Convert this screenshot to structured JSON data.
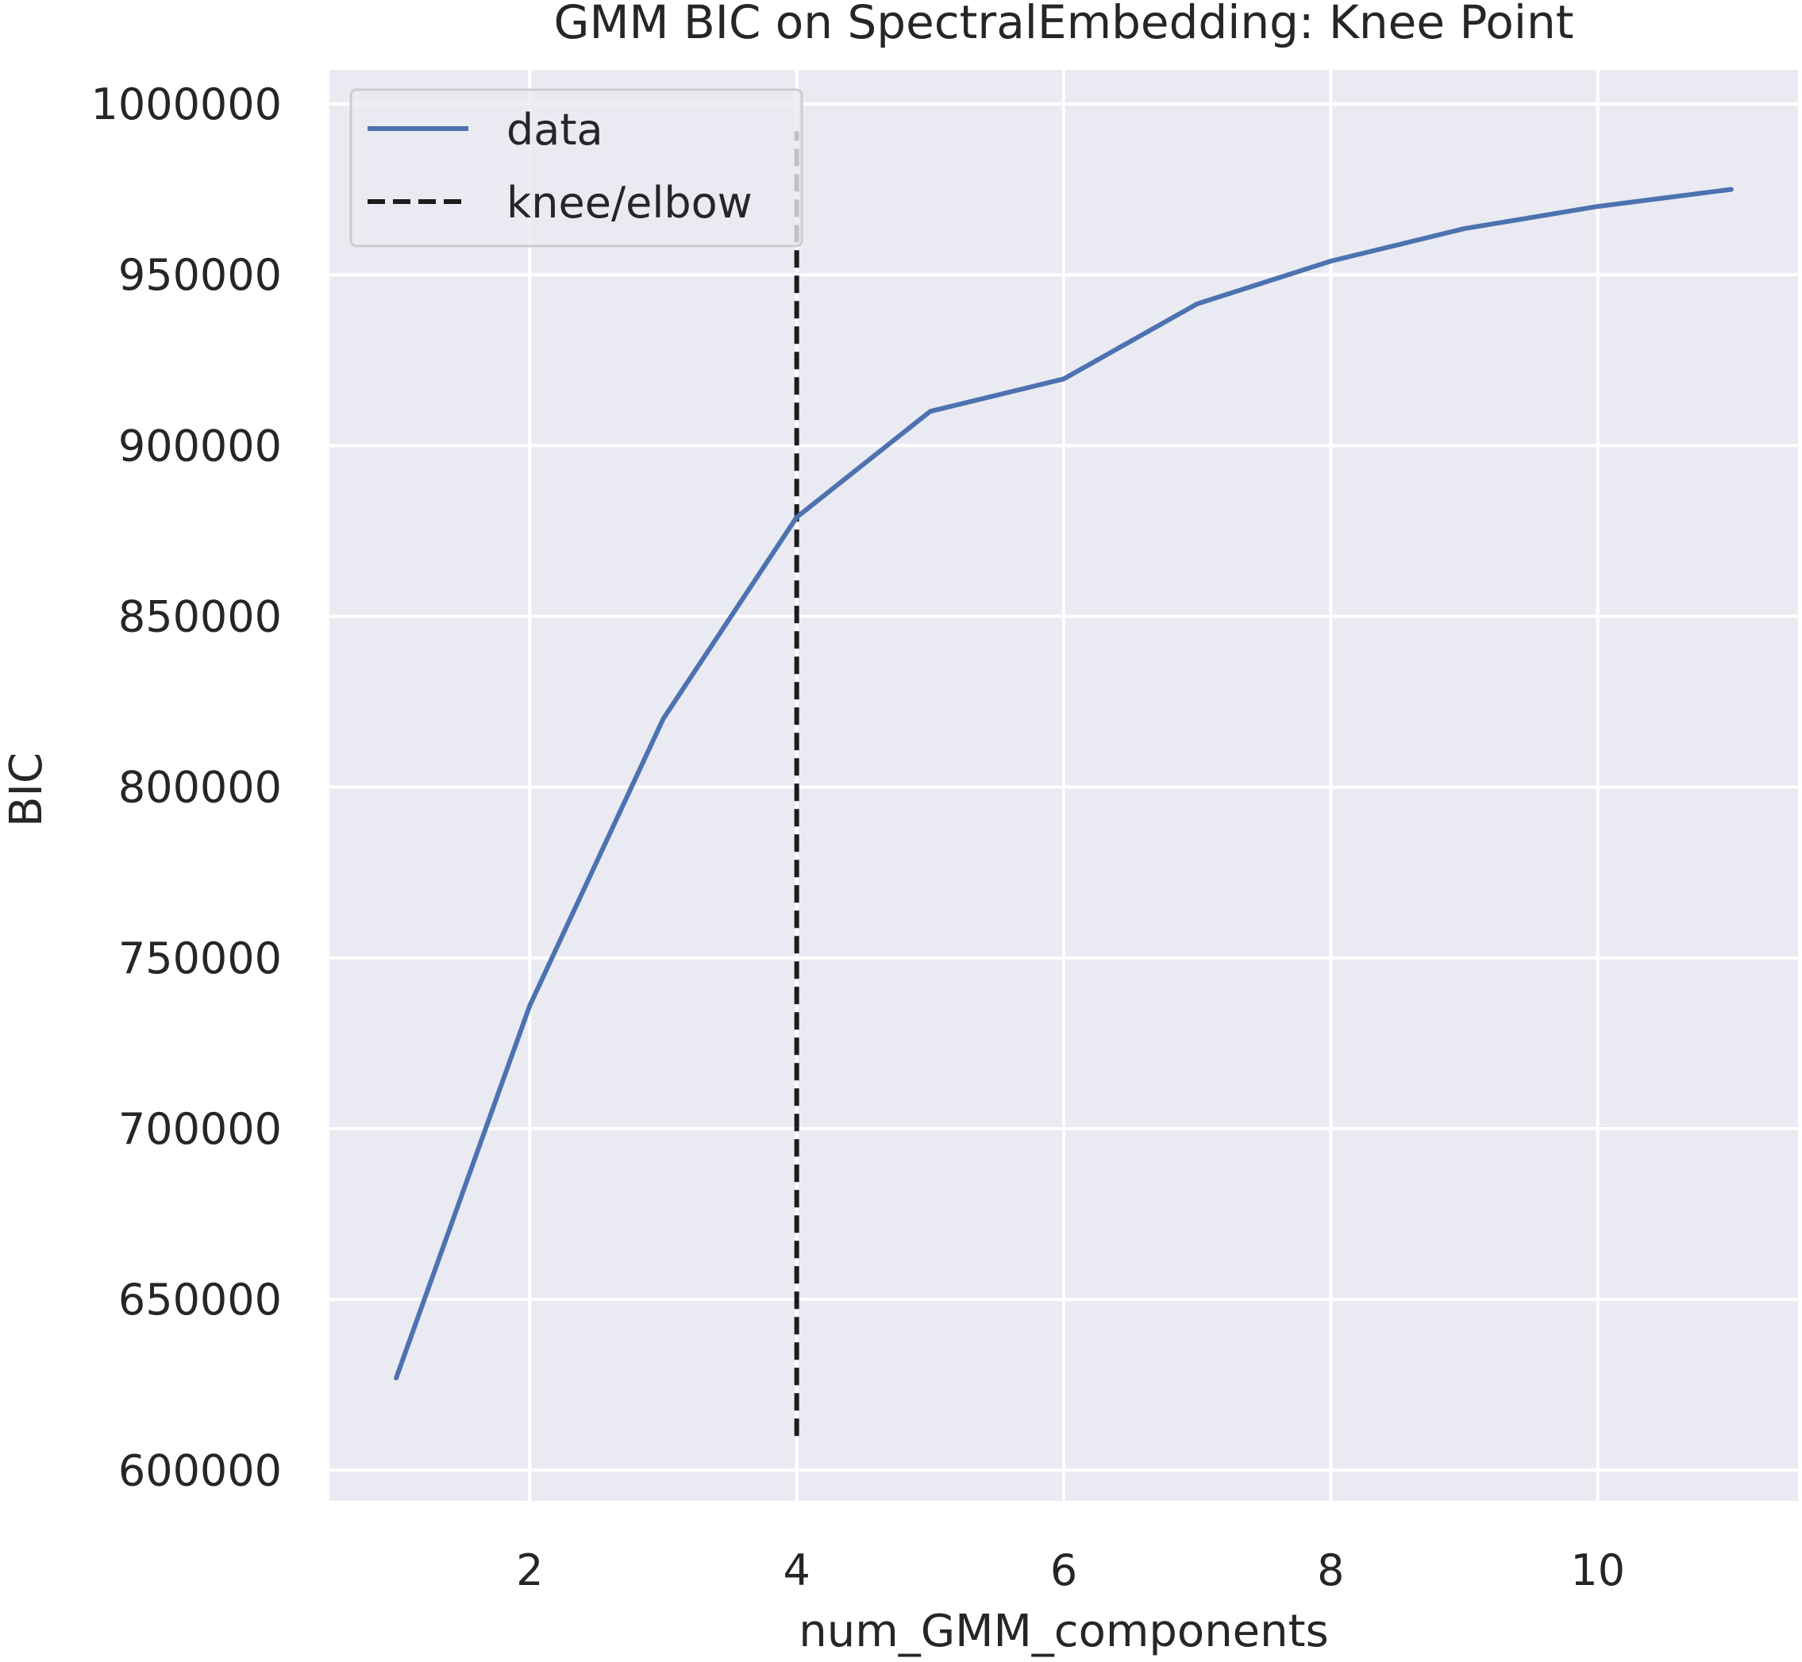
{
  "chart_data": {
    "type": "line",
    "title": "GMM BIC on SpectralEmbedding: Knee Point",
    "xlabel": "num_GMM_components",
    "ylabel": "BIC",
    "xlim": [
      0.5,
      11.5
    ],
    "ylim": [
      591000,
      1010000
    ],
    "xticks": [
      2,
      4,
      6,
      8,
      10
    ],
    "yticks": [
      600000,
      650000,
      700000,
      750000,
      800000,
      850000,
      900000,
      950000,
      1000000
    ],
    "grid": true,
    "legend_position": "top-left",
    "series": [
      {
        "name": "data",
        "color": "#4c72b0",
        "style": "solid",
        "x": [
          1,
          2,
          3,
          4,
          5,
          6,
          7,
          8,
          9,
          10,
          11
        ],
        "y": [
          627000,
          736000,
          820000,
          879000,
          910000,
          919500,
          941500,
          954000,
          963500,
          970000,
          975000
        ]
      }
    ],
    "vlines": [
      {
        "name": "knee/elbow",
        "color": "#1c1c1c",
        "style": "dashed",
        "x": 4,
        "ymin": 610000,
        "ymax": 992000
      }
    ],
    "colors": {
      "plot_background": "#eaeaf2",
      "grid": "#ffffff",
      "text": "#262626"
    }
  }
}
